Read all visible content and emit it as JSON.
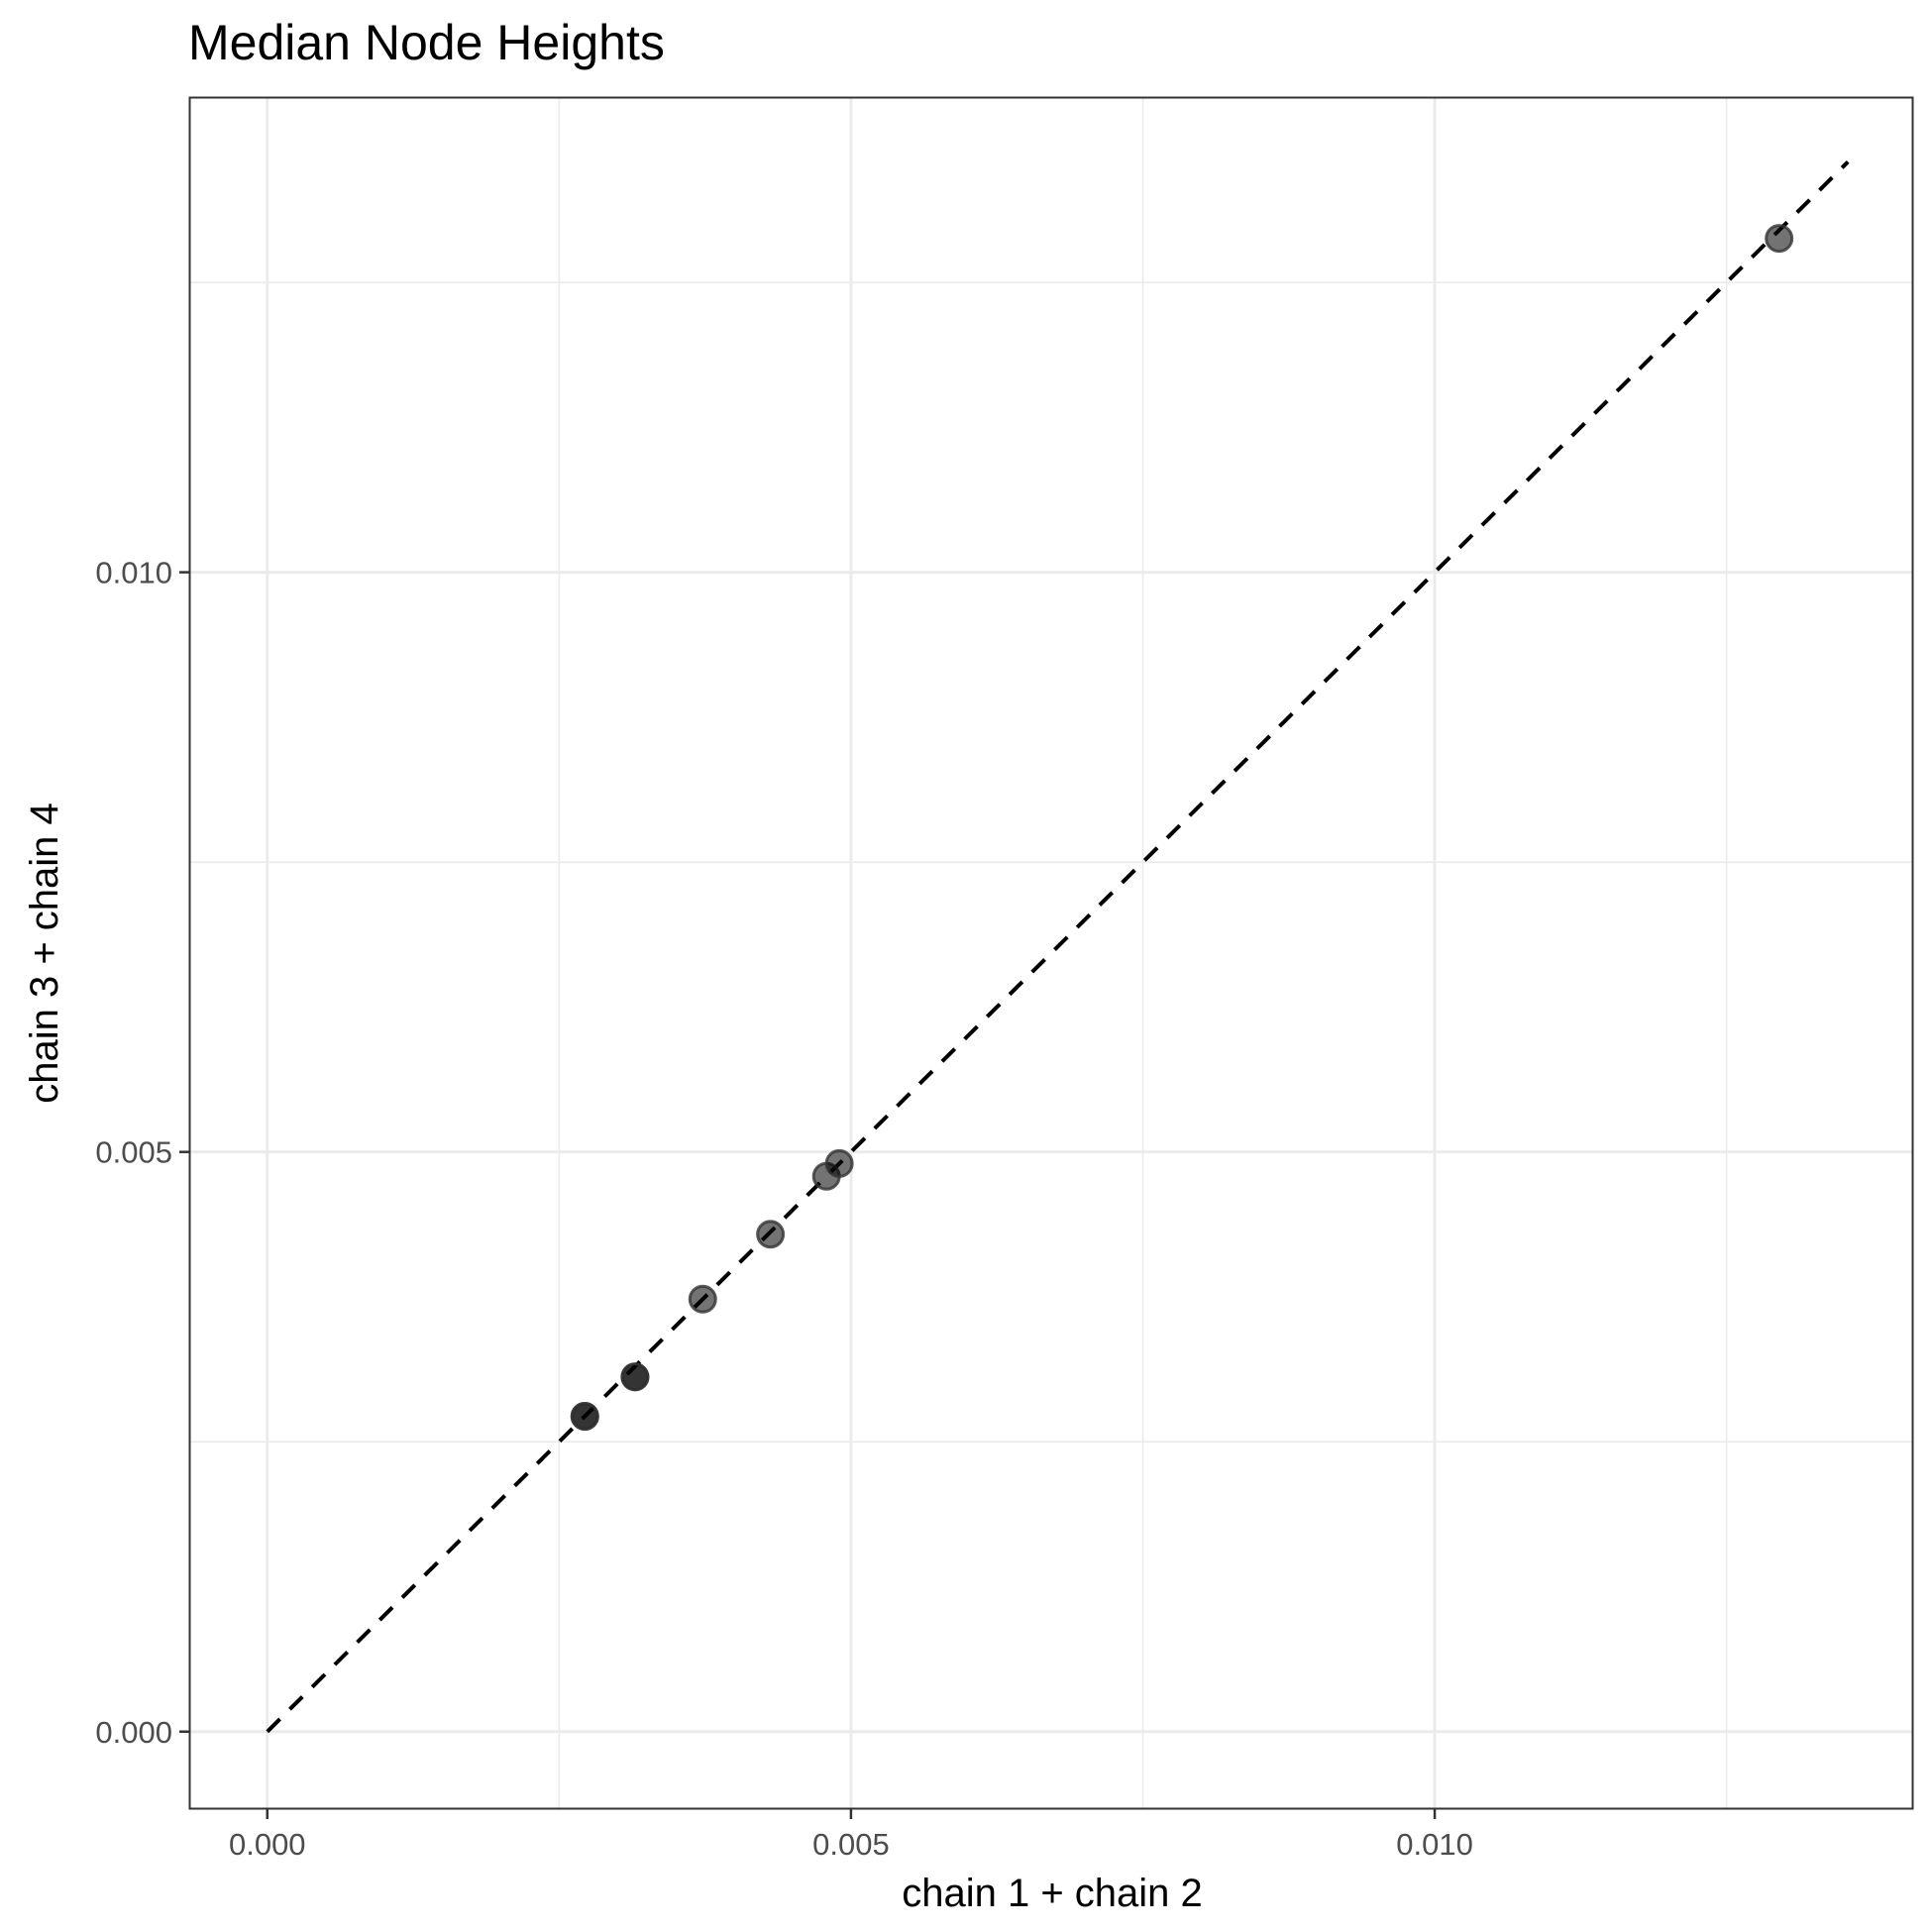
{
  "chart_data": {
    "type": "scatter",
    "title": "Median Node Heights",
    "xlabel": "chain 1 + chain 2",
    "ylabel": "chain 3 + chain 4",
    "xlim": [
      -0.00066,
      0.01409
    ],
    "ylim": [
      -0.00066,
      0.01409
    ],
    "x_ticks": [
      0.0,
      0.005,
      0.01
    ],
    "x_tick_labels": [
      "0.000",
      "0.005",
      "0.010"
    ],
    "y_ticks": [
      0.0,
      0.005,
      0.01
    ],
    "y_tick_labels": [
      "0.000",
      "0.005",
      "0.010"
    ],
    "minor_grid": [
      0.0025,
      0.0075,
      0.0125
    ],
    "grid": true,
    "legend": "none",
    "reference_line": {
      "style": "dashed",
      "from": [
        0.0,
        0.0
      ],
      "to": [
        0.01354,
        0.01354
      ]
    },
    "points": [
      {
        "x": 0.00272,
        "y": 0.00272,
        "overlap": 2
      },
      {
        "x": 0.00315,
        "y": 0.00306,
        "overlap": 2
      },
      {
        "x": 0.00373,
        "y": 0.00373,
        "overlap": 1
      },
      {
        "x": 0.00431,
        "y": 0.00429,
        "overlap": 1
      },
      {
        "x": 0.00479,
        "y": 0.00479,
        "overlap": 1
      },
      {
        "x": 0.0049,
        "y": 0.0049,
        "overlap": 1
      },
      {
        "x": 0.01295,
        "y": 0.01288,
        "overlap": 1
      }
    ],
    "colors": {
      "point": "#000000",
      "point_outline": "#333333",
      "grid": "#ebebeb",
      "panel_border": "#333333",
      "reference_line": "#000000"
    }
  }
}
